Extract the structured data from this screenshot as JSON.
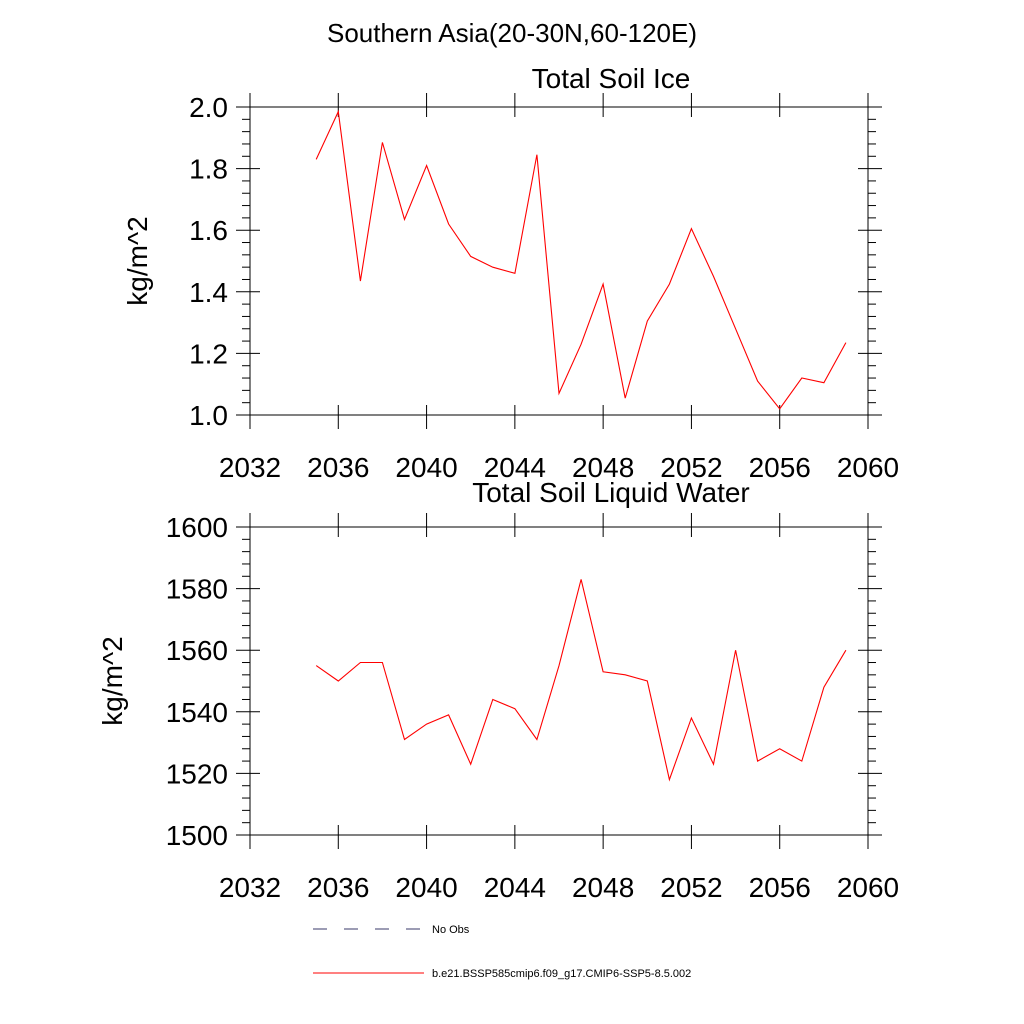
{
  "page": {
    "title": "Southern Asia(20-30N,60-120E)"
  },
  "chart_data": [
    {
      "type": "line",
      "title": "Total Soil Ice",
      "xlabel": "",
      "ylabel": "kg/m^2",
      "xlim": [
        2032,
        2060
      ],
      "ylim": [
        1.0,
        2.0
      ],
      "xticks": [
        "2032",
        "2036",
        "2040",
        "2044",
        "2048",
        "2052",
        "2056",
        "2060"
      ],
      "yticks": [
        "1.0",
        "1.2",
        "1.4",
        "1.6",
        "1.8",
        "2.0"
      ],
      "grid": false,
      "series": [
        {
          "name": "b.e21.BSSP585cmip6.f09_g17.CMIP6-SSP5-8.5.002",
          "color": "#ff0000",
          "x": [
            2035,
            2036,
            2037,
            2038,
            2039,
            2040,
            2041,
            2042,
            2043,
            2044,
            2045,
            2046,
            2047,
            2048,
            2049,
            2050,
            2051,
            2052,
            2053,
            2054,
            2055,
            2056,
            2057,
            2058,
            2059
          ],
          "values": [
            1.83,
            1.985,
            1.435,
            1.885,
            1.635,
            1.81,
            1.62,
            1.515,
            1.48,
            1.46,
            1.845,
            1.07,
            1.23,
            1.425,
            1.055,
            1.305,
            1.425,
            1.605,
            1.45,
            1.28,
            1.11,
            1.02,
            1.12,
            1.105,
            1.235
          ]
        }
      ]
    },
    {
      "type": "line",
      "title": "Total Soil Liquid Water",
      "xlabel": "",
      "ylabel": "kg/m^2",
      "xlim": [
        2032,
        2060
      ],
      "ylim": [
        1500,
        1600
      ],
      "xticks": [
        "2032",
        "2036",
        "2040",
        "2044",
        "2048",
        "2052",
        "2056",
        "2060"
      ],
      "yticks": [
        "1500",
        "1520",
        "1540",
        "1560",
        "1580",
        "1600"
      ],
      "grid": false,
      "series": [
        {
          "name": "b.e21.BSSP585cmip6.f09_g17.CMIP6-SSP5-8.5.002",
          "color": "#ff0000",
          "x": [
            2035,
            2036,
            2037,
            2038,
            2039,
            2040,
            2041,
            2042,
            2043,
            2044,
            2045,
            2046,
            2047,
            2048,
            2049,
            2050,
            2051,
            2052,
            2053,
            2054,
            2055,
            2056,
            2057,
            2058,
            2059
          ],
          "values": [
            1555,
            1550,
            1556,
            1556,
            1531,
            1536,
            1539,
            1523,
            1544,
            1541,
            1531,
            1555,
            1583,
            1553,
            1552,
            1550,
            1518,
            1538,
            1523,
            1560,
            1524,
            1528,
            1524,
            1548,
            1560
          ]
        }
      ]
    }
  ],
  "legend": {
    "placement": "bottom",
    "items": [
      {
        "label": "No Obs",
        "style": "dashed",
        "color": "#3a3a6a"
      },
      {
        "label": "b.e21.BSSP585cmip6.f09_g17.CMIP6-SSP5-8.5.002",
        "style": "solid",
        "color": "#ff0000"
      }
    ]
  }
}
